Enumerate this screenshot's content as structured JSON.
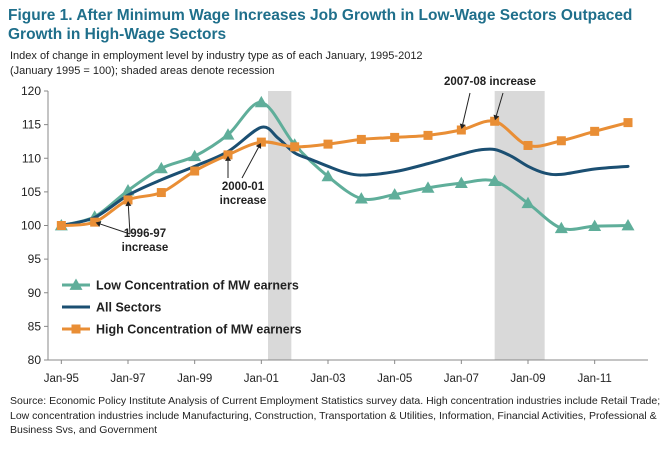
{
  "title": "Figure 1. After Minimum Wage Increases Job Growth in Low-Wage Sectors Outpaced Growth in High-Wage Sectors",
  "subtitle": "Index of change in employment  level by industry type as of each January, 1995-2012  (January 1995 = 100); shaded areas denote recession",
  "source": "Source: Economic Policy Institute Analysis of Current Employment Statistics survey data. High concentration industries include Retail Trade; Low concentration industries include Manufacturing, Construction, Transportation & Utilities, Information, Financial Activities, Professional & Business Svs, and Government",
  "chart_data": {
    "type": "line",
    "x": [
      1995,
      1996,
      1997,
      1998,
      1999,
      2000,
      2001,
      2002,
      2003,
      2004,
      2005,
      2006,
      2007,
      2008,
      2009,
      2010,
      2011,
      2012
    ],
    "x_tick_values": [
      1995,
      1997,
      1999,
      2001,
      2003,
      2005,
      2007,
      2009,
      2011
    ],
    "x_tick_labels": [
      "Jan-95",
      "Jan-97",
      "Jan-99",
      "Jan-01",
      "Jan-03",
      "Jan-05",
      "Jan-07",
      "Jan-09",
      "Jan-11"
    ],
    "ylim": [
      80,
      120
    ],
    "y_ticks": [
      80,
      85,
      90,
      95,
      100,
      105,
      110,
      115,
      120
    ],
    "recessions": [
      [
        2001.2,
        2001.9
      ],
      [
        2008.0,
        2009.5
      ]
    ],
    "series": [
      {
        "name": "Low Concentration of MW earners",
        "color": "#5fae9a",
        "marker": "triangle",
        "points": [
          [
            1995,
            100
          ],
          [
            1996,
            101.3
          ],
          [
            1997,
            105.2
          ],
          [
            1998,
            108.5
          ],
          [
            1999,
            110.3
          ],
          [
            2000,
            113.5
          ],
          [
            2001,
            118.3
          ],
          [
            2002,
            112.0
          ],
          [
            2003,
            107.3
          ],
          [
            2004,
            104.0
          ],
          [
            2005,
            104.6
          ],
          [
            2006,
            105.6
          ],
          [
            2007,
            106.3
          ],
          [
            2008,
            106.6
          ],
          [
            2009,
            103.3
          ],
          [
            2010,
            99.6
          ],
          [
            2011,
            99.9
          ],
          [
            2012,
            100.0
          ]
        ]
      },
      {
        "name": "All Sectors",
        "color": "#1b4f72",
        "marker": "none",
        "points": [
          [
            1995,
            100
          ],
          [
            1996,
            101.2
          ],
          [
            1997,
            104.5
          ],
          [
            1998,
            106.8
          ],
          [
            1999,
            108.8
          ],
          [
            2000,
            111.0
          ],
          [
            2001,
            114.6
          ],
          [
            2001.5,
            113.0
          ],
          [
            2002,
            110.8
          ],
          [
            2002.5,
            109.8
          ],
          [
            2003,
            108.8
          ],
          [
            2003.5,
            107.9
          ],
          [
            2004,
            107.5
          ],
          [
            2005,
            108.0
          ],
          [
            2006,
            109.2
          ],
          [
            2007,
            110.6
          ],
          [
            2007.5,
            111.2
          ],
          [
            2008,
            111.3
          ],
          [
            2008.5,
            110.3
          ],
          [
            2009,
            108.8
          ],
          [
            2009.5,
            107.8
          ],
          [
            2010,
            107.6
          ],
          [
            2011,
            108.4
          ],
          [
            2012,
            108.8
          ]
        ]
      },
      {
        "name": "High Concentration of MW earners",
        "color": "#e98e35",
        "marker": "square",
        "points": [
          [
            1995,
            100
          ],
          [
            1996,
            100.5
          ],
          [
            1997,
            103.8
          ],
          [
            1998,
            104.9
          ],
          [
            1999,
            108.1
          ],
          [
            2000,
            110.5
          ],
          [
            2001,
            112.4
          ],
          [
            2002,
            111.7
          ],
          [
            2003,
            112.1
          ],
          [
            2004,
            112.8
          ],
          [
            2005,
            113.1
          ],
          [
            2006,
            113.4
          ],
          [
            2007,
            114.2
          ],
          [
            2008,
            115.5
          ],
          [
            2009,
            111.9
          ],
          [
            2010,
            112.6
          ],
          [
            2011,
            114.0
          ],
          [
            2012,
            115.3
          ]
        ]
      }
    ],
    "annotations": [
      {
        "text_lines": [
          "2007-08 increase"
        ],
        "targets": [
          [
            2007,
            114.2
          ],
          [
            2008,
            115.5
          ]
        ]
      },
      {
        "text_lines": [
          "2000-01",
          "increase"
        ],
        "targets": [
          [
            2000,
            110.5
          ],
          [
            2001,
            112.4
          ]
        ]
      },
      {
        "text_lines": [
          "1996-97",
          "increase"
        ],
        "targets": [
          [
            1996,
            100.5
          ],
          [
            1997,
            103.8
          ]
        ]
      }
    ],
    "legend_position": "bottom-left"
  }
}
